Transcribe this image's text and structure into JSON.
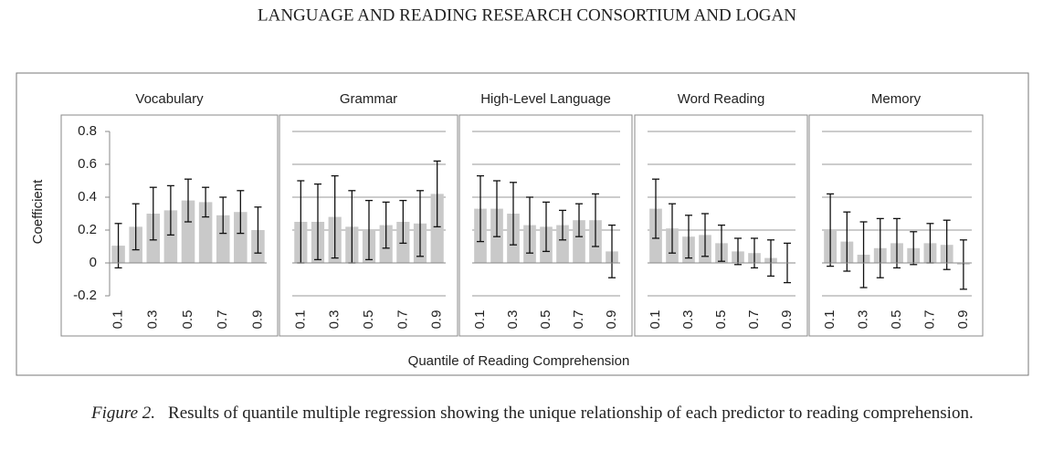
{
  "header": "LANGUAGE AND READING RESEARCH CONSORTIUM AND LOGAN",
  "ylabel": "Coefficient",
  "xlabel": "Quantile of Reading Comprehension",
  "caption": {
    "label": "Figure 2.",
    "text": "Results of quantile multiple regression showing the unique relationship of each predictor to reading comprehension."
  },
  "chart_data": [
    {
      "type": "bar",
      "title": "Vocabulary",
      "categories": [
        "0.1",
        null,
        "0.3",
        null,
        "0.5",
        null,
        "0.7",
        null,
        "0.9"
      ],
      "series": [
        {
          "color": "#c9c9c9",
          "values": [
            0.105,
            0.22,
            0.3,
            0.32,
            0.38,
            0.37,
            0.29,
            0.31,
            0.2
          ],
          "error": [
            0.135,
            0.14,
            0.16,
            0.15,
            0.13,
            0.09,
            0.11,
            0.13,
            0.14
          ]
        }
      ],
      "ylim": [
        -0.2,
        0.8
      ],
      "yticks": [
        -0.2,
        0,
        0.2,
        0.4,
        0.6,
        0.8
      ],
      "tick_labels": true,
      "grid": false
    },
    {
      "type": "bar",
      "title": "Grammar",
      "categories": [
        "0.1",
        null,
        "0.3",
        null,
        "0.5",
        null,
        "0.7",
        null,
        "0.9"
      ],
      "series": [
        {
          "color": "#c9c9c9",
          "values": [
            0.25,
            0.25,
            0.28,
            0.22,
            0.2,
            0.23,
            0.25,
            0.24,
            0.42
          ],
          "error": [
            0.25,
            0.23,
            0.25,
            0.22,
            0.18,
            0.14,
            0.13,
            0.2,
            0.2
          ]
        }
      ],
      "ylim": [
        -0.2,
        0.8
      ],
      "yticks": [
        -0.2,
        0,
        0.2,
        0.4,
        0.6,
        0.8
      ],
      "tick_labels": false,
      "grid": true
    },
    {
      "type": "bar",
      "title": "High-Level Language",
      "categories": [
        "0.1",
        null,
        "0.3",
        null,
        "0.5",
        null,
        "0.7",
        null,
        "0.9"
      ],
      "series": [
        {
          "color": "#c9c9c9",
          "values": [
            0.33,
            0.33,
            0.3,
            0.23,
            0.22,
            0.23,
            0.26,
            0.26,
            0.07
          ],
          "error": [
            0.2,
            0.17,
            0.19,
            0.17,
            0.15,
            0.09,
            0.1,
            0.16,
            0.16
          ]
        }
      ],
      "ylim": [
        -0.2,
        0.8
      ],
      "yticks": [
        -0.2,
        0,
        0.2,
        0.4,
        0.6,
        0.8
      ],
      "tick_labels": false,
      "grid": true
    },
    {
      "type": "bar",
      "title": "Word Reading",
      "categories": [
        "0.1",
        null,
        "0.3",
        null,
        "0.5",
        null,
        "0.7",
        null,
        "0.9"
      ],
      "series": [
        {
          "color": "#c9c9c9",
          "values": [
            0.33,
            0.21,
            0.16,
            0.17,
            0.12,
            0.07,
            0.06,
            0.03,
            0.0
          ],
          "error": [
            0.18,
            0.15,
            0.13,
            0.13,
            0.11,
            0.08,
            0.09,
            0.11,
            0.12
          ]
        }
      ],
      "ylim": [
        -0.2,
        0.8
      ],
      "yticks": [
        -0.2,
        0,
        0.2,
        0.4,
        0.6,
        0.8
      ],
      "tick_labels": false,
      "grid": true
    },
    {
      "type": "bar",
      "title": "Memory",
      "categories": [
        "0.1",
        null,
        "0.3",
        null,
        "0.5",
        null,
        "0.7",
        null,
        "0.9"
      ],
      "series": [
        {
          "color": "#c9c9c9",
          "values": [
            0.2,
            0.13,
            0.05,
            0.09,
            0.12,
            0.09,
            0.12,
            0.11,
            -0.01
          ],
          "error": [
            0.22,
            0.18,
            0.2,
            0.18,
            0.15,
            0.1,
            0.12,
            0.15,
            0.15
          ]
        }
      ],
      "ylim": [
        -0.2,
        0.8
      ],
      "yticks": [
        -0.2,
        0,
        0.2,
        0.4,
        0.6,
        0.8
      ],
      "tick_labels": false,
      "grid": true
    }
  ]
}
